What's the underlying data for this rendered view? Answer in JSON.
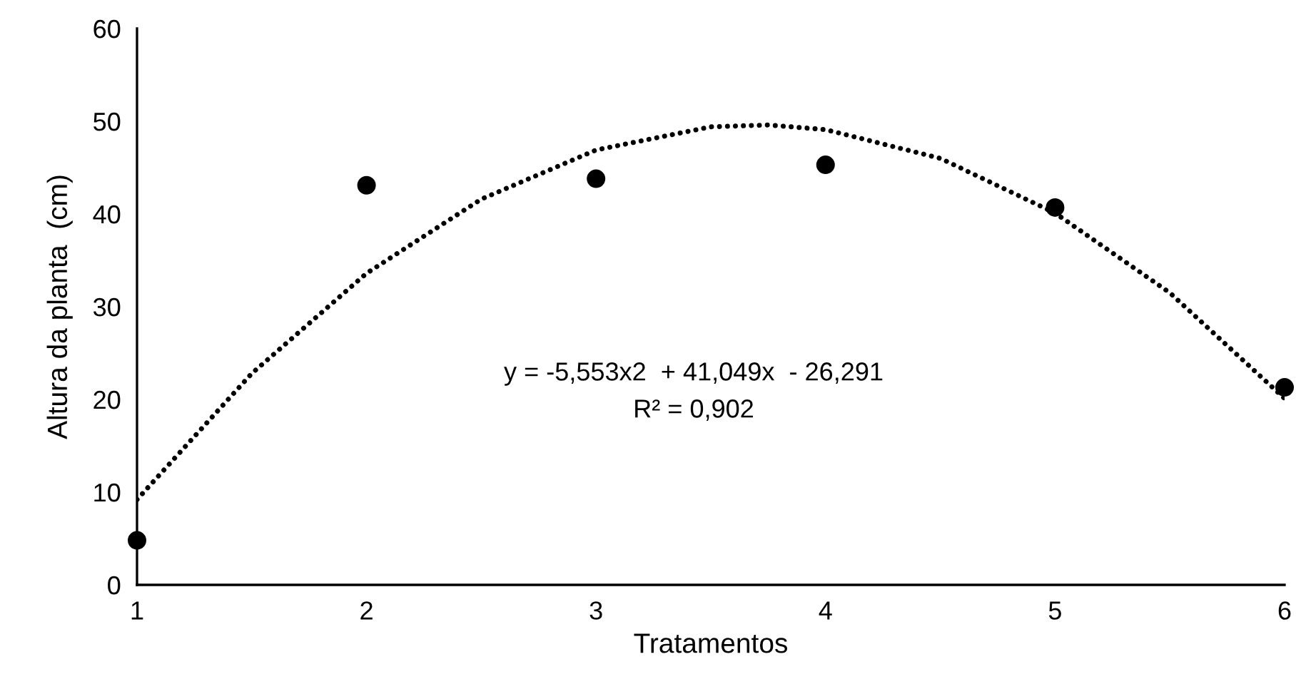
{
  "chart_data": {
    "type": "scatter",
    "xlabel": "Tratamentos",
    "ylabel": "Altura da planta  (cm)",
    "xlim": [
      1,
      6
    ],
    "xticks": [
      1,
      2,
      3,
      4,
      5,
      6
    ],
    "ylim": [
      0,
      60
    ],
    "yticks": [
      0,
      10,
      20,
      30,
      40,
      50,
      60
    ],
    "grid": false,
    "legend": false,
    "series": [
      {
        "color": "#000000",
        "marker": "circle",
        "x": [
          1,
          2,
          3,
          4,
          5,
          6
        ],
        "values": [
          4.8,
          43.1,
          43.8,
          45.3,
          40.7,
          21.3
        ]
      },
      {
        "type": "line",
        "color": "#000000",
        "marker": "none",
        "line_style": "dotted",
        "x": [
          1,
          1.5,
          2,
          2.5,
          3,
          3.5,
          3.75,
          4,
          4.5,
          5,
          5.5,
          6
        ],
        "values": [
          9.2,
          22.8,
          33.6,
          41.6,
          46.9,
          49.4,
          49.6,
          49.1,
          46.0,
          40.1,
          31.5,
          20.1
        ]
      }
    ],
    "annotations": [
      "y = -5,553x2  + 41,049x  - 26,291",
      "R² = 0,902"
    ]
  }
}
